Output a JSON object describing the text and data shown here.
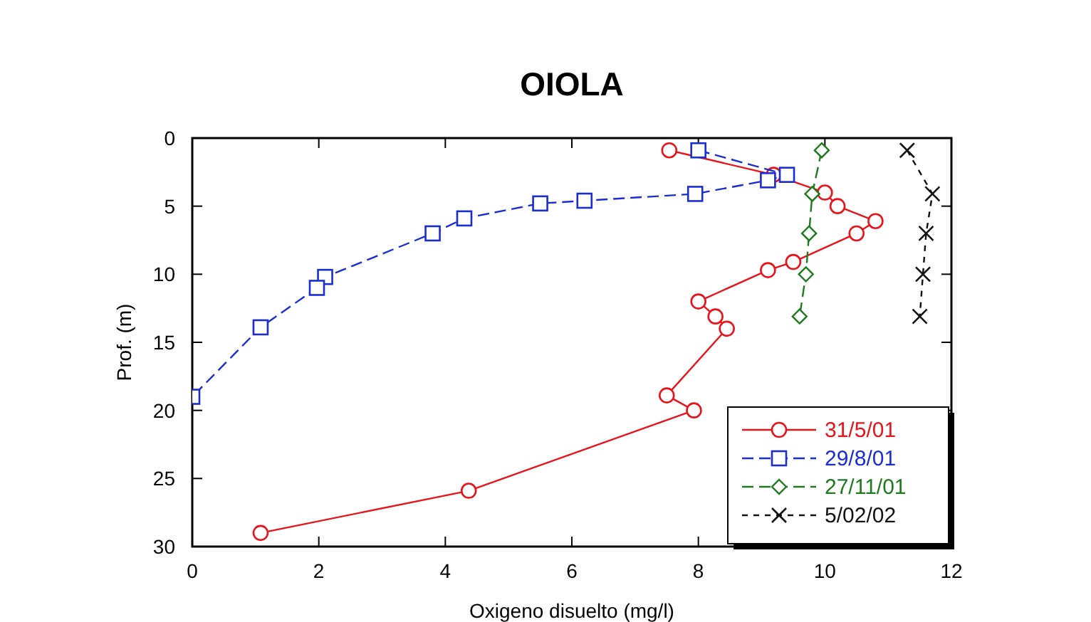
{
  "chart_data": {
    "type": "line",
    "title": "OIOLA",
    "xlabel": "Oxigeno disuelto (mg/l)",
    "ylabel": "Prof. (m)",
    "xlim": [
      0,
      12
    ],
    "xticks": [
      0,
      2,
      4,
      6,
      8,
      10,
      12
    ],
    "ylim": [
      30,
      0
    ],
    "yticks": [
      0,
      5,
      10,
      15,
      20,
      25,
      30
    ],
    "grid": false,
    "legend": "bottom right",
    "series": [
      {
        "name": "31/5/01",
        "color": "#e8141a",
        "marker": "circle",
        "line_style": "solid",
        "x": [
          7.54,
          9.19,
          10.0,
          10.2,
          10.8,
          10.5,
          9.5,
          9.1,
          8.0,
          8.27,
          8.45,
          7.5,
          7.93,
          4.37,
          1.08
        ],
        "values": [
          0.9,
          2.7,
          4.0,
          5.0,
          6.1,
          7.0,
          9.1,
          9.7,
          12.0,
          13.1,
          14.0,
          18.9,
          20.0,
          25.9,
          29.0
        ]
      },
      {
        "name": "29/8/01",
        "color": "#1a2ed6",
        "marker": "square",
        "line_style": "dashed",
        "x": [
          8.0,
          9.4,
          9.1,
          7.95,
          6.2,
          5.5,
          4.3,
          3.8,
          2.1,
          1.97,
          1.08,
          0
        ],
        "values": [
          0.9,
          2.7,
          3.1,
          4.1,
          4.6,
          4.8,
          5.9,
          7.0,
          10.2,
          11.0,
          13.9,
          19.0
        ]
      },
      {
        "name": "27/11/01",
        "color": "#1e7a1e",
        "marker": "diamond",
        "line_style": "dashed",
        "x": [
          9.95,
          9.8,
          9.75,
          9.7,
          9.6
        ],
        "values": [
          0.9,
          4.1,
          7.0,
          10.0,
          13.1
        ]
      },
      {
        "name": "5/02/02",
        "color": "#111111",
        "marker": "cross",
        "line_style": "dotted",
        "x": [
          11.3,
          11.7,
          11.6,
          11.55,
          11.5
        ],
        "values": [
          0.9,
          4.1,
          7.0,
          10.0,
          13.1
        ]
      }
    ]
  }
}
